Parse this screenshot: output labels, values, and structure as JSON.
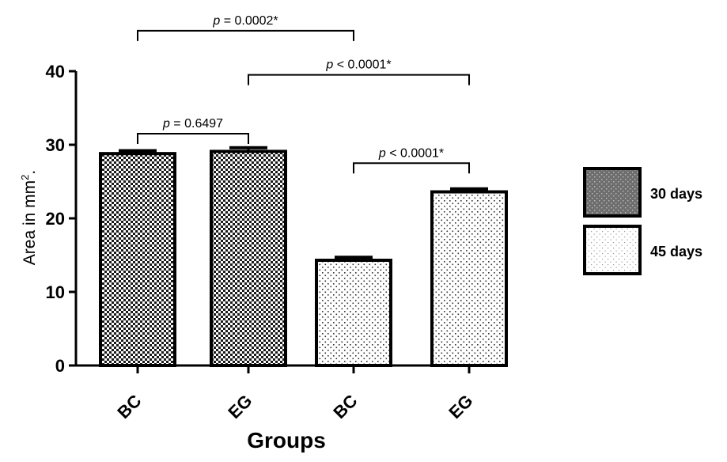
{
  "chart_data": {
    "type": "bar",
    "categories": [
      "BC",
      "EG",
      "BC",
      "EG"
    ],
    "values": [
      28.8,
      29.1,
      14.3,
      23.6
    ],
    "errors": [
      0.4,
      0.5,
      0.4,
      0.4
    ],
    "bar_series": [
      "30 days",
      "30 days",
      "45 days",
      "45 days"
    ],
    "series": [
      {
        "name": "30 days",
        "pattern": "checker"
      },
      {
        "name": "45 days",
        "pattern": "dots"
      }
    ],
    "xlabel": "Groups",
    "ylabel": "Area in mm",
    "ylabel_sup": "2",
    "ylabel_suffix": ".",
    "ylim": [
      0,
      40
    ],
    "yticks": [
      0,
      10,
      20,
      30,
      40
    ],
    "grid": false,
    "legend_position": "right",
    "annotations": [
      {
        "from": 0,
        "to": 1,
        "text": "p = 0.6497",
        "italic": "p",
        "rest": " = 0.6497",
        "level": 31.5
      },
      {
        "from": 0,
        "to": 2,
        "text": "p = 0.0002*",
        "italic": "p",
        "rest": " = 0.0002*",
        "level": 45.5
      },
      {
        "from": 1,
        "to": 3,
        "text": "p < 0.0001*",
        "italic": "p",
        "rest": " < 0.0001*",
        "level": 39.5
      },
      {
        "from": 2,
        "to": 3,
        "text": "p < 0.0001*",
        "italic": "p",
        "rest": " < 0.0001*",
        "level": 27.5
      }
    ],
    "colors": {
      "bar_stroke": "#000000",
      "pattern_dark": "#1a1a1a",
      "pattern_light": "#ffffff",
      "dots": "#333333"
    }
  }
}
